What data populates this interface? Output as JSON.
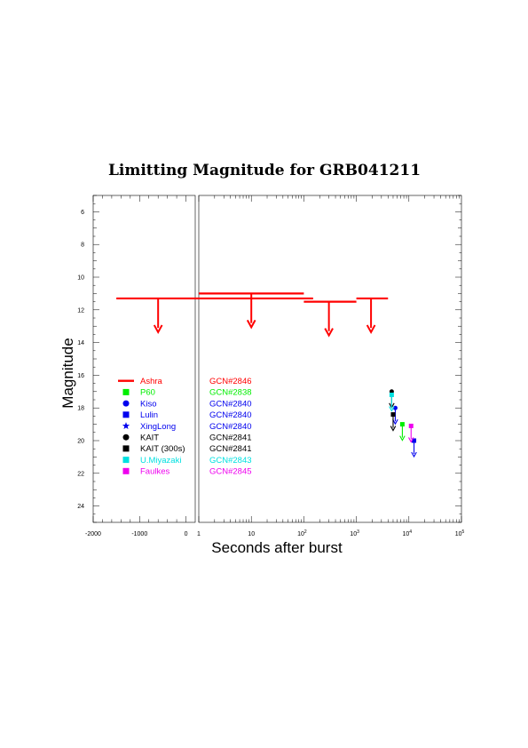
{
  "colors": {
    "red": "#ff0000",
    "green": "#00ee00",
    "blue": "#0000ee",
    "black": "#000000",
    "cyan": "#00e0e0",
    "magenta": "#ee00ee"
  },
  "chart_data": {
    "type": "scatter",
    "title": "Limitting Magnitude for GRB041211",
    "xlabel": "Seconds after burst",
    "ylabel": "Magnitude",
    "y_inverted": true,
    "ylim": [
      5,
      25
    ],
    "grid": false,
    "legend_position": "lower-left",
    "x_segments": [
      {
        "scale": "linear",
        "range": [
          -2000,
          200
        ]
      },
      {
        "scale": "log",
        "range": [
          1,
          100000
        ]
      }
    ],
    "x_ticks_linear": [
      {
        "value": -2000,
        "label": "-2000"
      },
      {
        "value": -1000,
        "label": "-1000"
      },
      {
        "value": 0,
        "label": "0"
      }
    ],
    "x_ticks_log": [
      {
        "value": 1,
        "base": "1",
        "exp": ""
      },
      {
        "value": 10,
        "base": "10",
        "exp": ""
      },
      {
        "value": 100,
        "base": "10",
        "exp": "2"
      },
      {
        "value": 1000,
        "base": "10",
        "exp": "3"
      },
      {
        "value": 10000,
        "base": "10",
        "exp": "4"
      },
      {
        "value": 100000,
        "base": "10",
        "exp": "5"
      }
    ],
    "y_ticks": [
      "6",
      "8",
      "10",
      "12",
      "14",
      "16",
      "18",
      "20",
      "22",
      "24"
    ],
    "ashra_limits": [
      {
        "x_start": -1500,
        "x_end": 150,
        "x_arrow": -600,
        "y": 11.3
      },
      {
        "x_start": 1,
        "x_end": 100,
        "x_arrow": 10,
        "y": 11.0
      },
      {
        "x_start": 100,
        "x_end": 1000,
        "x_arrow": 300,
        "y": 11.5
      },
      {
        "x_start": 1000,
        "x_end": 4000,
        "x_arrow": 1900,
        "y": 11.3
      }
    ],
    "series": [
      {
        "name": "Ashra",
        "ref": "GCN#2846",
        "color": "red",
        "marker": "line"
      },
      {
        "name": "P60",
        "ref": "GCN#2838",
        "color": "green",
        "marker": "square",
        "points": [
          {
            "x": 7500,
            "y": 19.0
          }
        ]
      },
      {
        "name": "Kiso",
        "ref": "GCN#2840",
        "color": "blue",
        "marker": "circle",
        "points": [
          {
            "x": 5500,
            "y": 18.0
          }
        ]
      },
      {
        "name": "Lulin",
        "ref": "GCN#2840",
        "color": "blue",
        "marker": "square",
        "points": [
          {
            "x": 12500,
            "y": 20.0
          }
        ]
      },
      {
        "name": "XingLong",
        "ref": "GCN#2840",
        "color": "blue",
        "marker": "star",
        "points": []
      },
      {
        "name": "KAIT",
        "ref": "GCN#2841",
        "color": "black",
        "marker": "circle",
        "points": [
          {
            "x": 4700,
            "y": 17.0
          }
        ]
      },
      {
        "name": "KAIT (300s)",
        "ref": "GCN#2841",
        "color": "black",
        "marker": "square",
        "points": [
          {
            "x": 5000,
            "y": 18.4
          }
        ]
      },
      {
        "name": "U.Miyazaki",
        "ref": "GCN#2843",
        "color": "cyan",
        "marker": "square",
        "points": [
          {
            "x": 4700,
            "y": 17.2
          }
        ]
      },
      {
        "name": "Faulkes",
        "ref": "GCN#2845",
        "color": "magenta",
        "marker": "square",
        "points": [
          {
            "x": 11000,
            "y": 19.1
          }
        ]
      }
    ]
  }
}
